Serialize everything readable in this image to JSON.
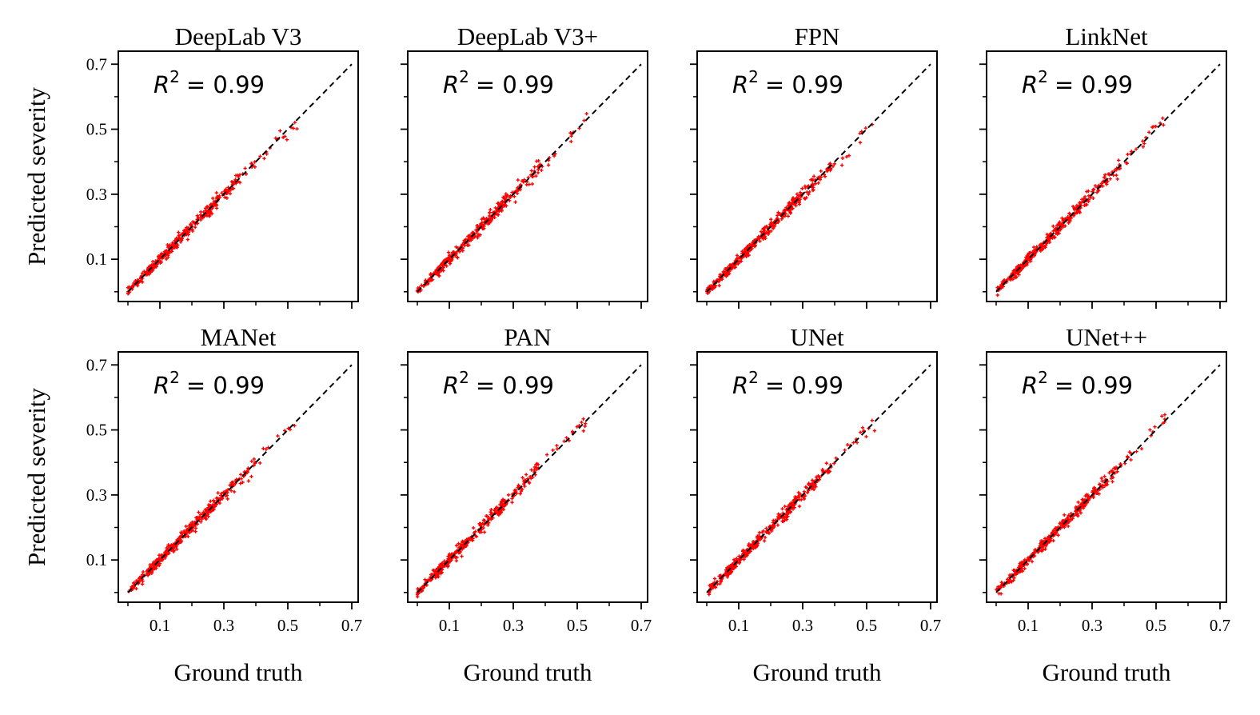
{
  "figure": {
    "ylabel": "Predicted severity",
    "xlabel": "Ground truth"
  },
  "chart_data": [
    {
      "type": "scatter",
      "title": "DeepLab V3",
      "annotation_base": "R",
      "annotation_sup": "2",
      "annotation_value": "= 0.99",
      "r2": 0.99,
      "xlim": [
        -0.03,
        0.72
      ],
      "ylim": [
        -0.03,
        0.74
      ],
      "xticks": [
        0.1,
        0.3,
        0.5,
        0.7
      ],
      "yticks": [
        0.1,
        0.3,
        0.5,
        0.7
      ],
      "xtick_labels": [
        "0.1",
        "0.3",
        "0.5",
        "0.7"
      ],
      "ytick_labels": [
        "0.1",
        "0.3",
        "0.5",
        "0.7"
      ],
      "reference_line": {
        "style": "dashed",
        "from": [
          0,
          0
        ],
        "to": [
          0.7,
          0.7
        ]
      },
      "point_count": 380,
      "noise": 0.009,
      "seed": 11
    },
    {
      "type": "scatter",
      "title": "DeepLab V3+",
      "annotation_base": "R",
      "annotation_sup": "2",
      "annotation_value": "= 0.99",
      "r2": 0.99,
      "xlim": [
        -0.03,
        0.72
      ],
      "ylim": [
        -0.03,
        0.74
      ],
      "xticks": [
        0.1,
        0.3,
        0.5,
        0.7
      ],
      "yticks": [
        0.1,
        0.3,
        0.5,
        0.7
      ],
      "xtick_labels": [
        "0.1",
        "0.3",
        "0.5",
        "0.7"
      ],
      "ytick_labels": [
        "0.1",
        "0.3",
        "0.5",
        "0.7"
      ],
      "reference_line": {
        "style": "dashed",
        "from": [
          0,
          0
        ],
        "to": [
          0.7,
          0.7
        ]
      },
      "point_count": 380,
      "noise": 0.009,
      "seed": 23
    },
    {
      "type": "scatter",
      "title": "FPN",
      "annotation_base": "R",
      "annotation_sup": "2",
      "annotation_value": "= 0.99",
      "r2": 0.99,
      "xlim": [
        -0.03,
        0.72
      ],
      "ylim": [
        -0.03,
        0.74
      ],
      "xticks": [
        0.1,
        0.3,
        0.5,
        0.7
      ],
      "yticks": [
        0.1,
        0.3,
        0.5,
        0.7
      ],
      "xtick_labels": [
        "0.1",
        "0.3",
        "0.5",
        "0.7"
      ],
      "ytick_labels": [
        "0.1",
        "0.3",
        "0.5",
        "0.7"
      ],
      "reference_line": {
        "style": "dashed",
        "from": [
          0,
          0
        ],
        "to": [
          0.7,
          0.7
        ]
      },
      "point_count": 380,
      "noise": 0.009,
      "seed": 37
    },
    {
      "type": "scatter",
      "title": "LinkNet",
      "annotation_base": "R",
      "annotation_sup": "2",
      "annotation_value": "= 0.99",
      "r2": 0.99,
      "xlim": [
        -0.03,
        0.72
      ],
      "ylim": [
        -0.03,
        0.74
      ],
      "xticks": [
        0.1,
        0.3,
        0.5,
        0.7
      ],
      "yticks": [
        0.1,
        0.3,
        0.5,
        0.7
      ],
      "xtick_labels": [
        "0.1",
        "0.3",
        "0.5",
        "0.7"
      ],
      "ytick_labels": [
        "0.1",
        "0.3",
        "0.5",
        "0.7"
      ],
      "reference_line": {
        "style": "dashed",
        "from": [
          0,
          0
        ],
        "to": [
          0.7,
          0.7
        ]
      },
      "point_count": 380,
      "noise": 0.009,
      "seed": 41
    },
    {
      "type": "scatter",
      "title": "MANet",
      "annotation_base": "R",
      "annotation_sup": "2",
      "annotation_value": "= 0.99",
      "r2": 0.99,
      "xlim": [
        -0.03,
        0.72
      ],
      "ylim": [
        -0.03,
        0.74
      ],
      "xticks": [
        0.1,
        0.3,
        0.5,
        0.7
      ],
      "yticks": [
        0.1,
        0.3,
        0.5,
        0.7
      ],
      "xtick_labels": [
        "0.1",
        "0.3",
        "0.5",
        "0.7"
      ],
      "ytick_labels": [
        "0.1",
        "0.3",
        "0.5",
        "0.7"
      ],
      "reference_line": {
        "style": "dashed",
        "from": [
          0,
          0
        ],
        "to": [
          0.7,
          0.7
        ]
      },
      "point_count": 380,
      "noise": 0.009,
      "seed": 53
    },
    {
      "type": "scatter",
      "title": "PAN",
      "annotation_base": "R",
      "annotation_sup": "2",
      "annotation_value": "= 0.99",
      "r2": 0.99,
      "xlim": [
        -0.03,
        0.72
      ],
      "ylim": [
        -0.03,
        0.74
      ],
      "xticks": [
        0.1,
        0.3,
        0.5,
        0.7
      ],
      "yticks": [
        0.1,
        0.3,
        0.5,
        0.7
      ],
      "xtick_labels": [
        "0.1",
        "0.3",
        "0.5",
        "0.7"
      ],
      "ytick_labels": [
        "0.1",
        "0.3",
        "0.5",
        "0.7"
      ],
      "reference_line": {
        "style": "dashed",
        "from": [
          0,
          0
        ],
        "to": [
          0.7,
          0.7
        ]
      },
      "point_count": 380,
      "noise": 0.009,
      "seed": 67
    },
    {
      "type": "scatter",
      "title": "UNet",
      "annotation_base": "R",
      "annotation_sup": "2",
      "annotation_value": "= 0.99",
      "r2": 0.99,
      "xlim": [
        -0.03,
        0.72
      ],
      "ylim": [
        -0.03,
        0.74
      ],
      "xticks": [
        0.1,
        0.3,
        0.5,
        0.7
      ],
      "yticks": [
        0.1,
        0.3,
        0.5,
        0.7
      ],
      "xtick_labels": [
        "0.1",
        "0.3",
        "0.5",
        "0.7"
      ],
      "ytick_labels": [
        "0.1",
        "0.3",
        "0.5",
        "0.7"
      ],
      "reference_line": {
        "style": "dashed",
        "from": [
          0,
          0
        ],
        "to": [
          0.7,
          0.7
        ]
      },
      "point_count": 380,
      "noise": 0.009,
      "seed": 79
    },
    {
      "type": "scatter",
      "title": "UNet++",
      "annotation_base": "R",
      "annotation_sup": "2",
      "annotation_value": "= 0.99",
      "r2": 0.99,
      "xlim": [
        -0.03,
        0.72
      ],
      "ylim": [
        -0.03,
        0.74
      ],
      "xticks": [
        0.1,
        0.3,
        0.5,
        0.7
      ],
      "yticks": [
        0.1,
        0.3,
        0.5,
        0.7
      ],
      "xtick_labels": [
        "0.1",
        "0.3",
        "0.5",
        "0.7"
      ],
      "ytick_labels": [
        "0.1",
        "0.3",
        "0.5",
        "0.7"
      ],
      "reference_line": {
        "style": "dashed",
        "from": [
          0,
          0
        ],
        "to": [
          0.7,
          0.7
        ]
      },
      "point_count": 380,
      "noise": 0.009,
      "seed": 97
    }
  ],
  "colors": {
    "points": "#ff0000",
    "reference_line": "#000000",
    "axes": "#000000",
    "background": "#ffffff"
  }
}
